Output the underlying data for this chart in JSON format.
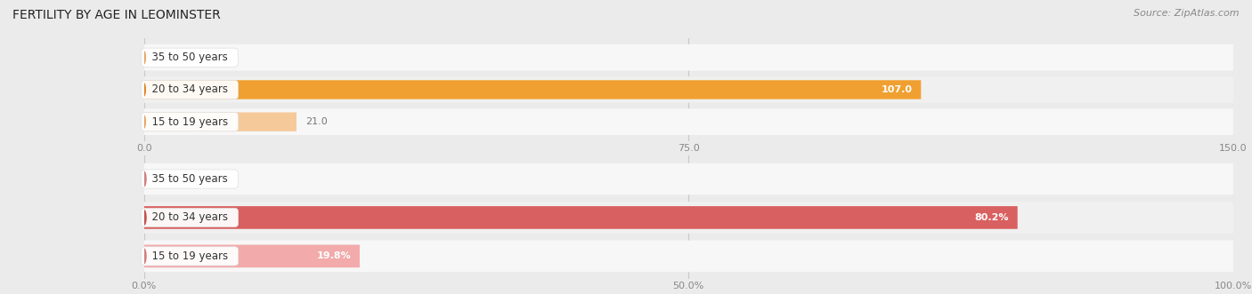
{
  "title": "FERTILITY BY AGE IN LEOMINSTER",
  "source": "Source: ZipAtlas.com",
  "top_chart": {
    "categories": [
      "15 to 19 years",
      "20 to 34 years",
      "35 to 50 years"
    ],
    "values": [
      0.0,
      107.0,
      21.0
    ],
    "xlim": [
      0,
      150
    ],
    "xticks": [
      0.0,
      75.0,
      150.0
    ],
    "bar_colors": [
      "#F5C99A",
      "#F0A030",
      "#F5C99A"
    ],
    "dot_colors": [
      "#E8A060",
      "#E08020",
      "#E8A060"
    ],
    "row_bg_colors": [
      "#F7F7F7",
      "#F0F0F0",
      "#F7F7F7"
    ]
  },
  "bottom_chart": {
    "categories": [
      "15 to 19 years",
      "20 to 34 years",
      "35 to 50 years"
    ],
    "values": [
      0.0,
      80.2,
      19.8
    ],
    "xlim": [
      0,
      100
    ],
    "xticks": [
      0.0,
      50.0,
      100.0
    ],
    "xtick_labels": [
      "0.0%",
      "50.0%",
      "100.0%"
    ],
    "bar_colors": [
      "#F2AAAA",
      "#D96060",
      "#F2AAAA"
    ],
    "dot_colors": [
      "#D08080",
      "#C05050",
      "#D08080"
    ],
    "row_bg_colors": [
      "#F7F7F7",
      "#F0F0F0",
      "#F7F7F7"
    ]
  },
  "fig_bg_color": "#EBEBEB",
  "row_outer_bg": "#E0E0E0",
  "title_fontsize": 10,
  "label_fontsize": 8.5,
  "tick_fontsize": 8,
  "source_fontsize": 8,
  "value_label_fontsize": 8
}
